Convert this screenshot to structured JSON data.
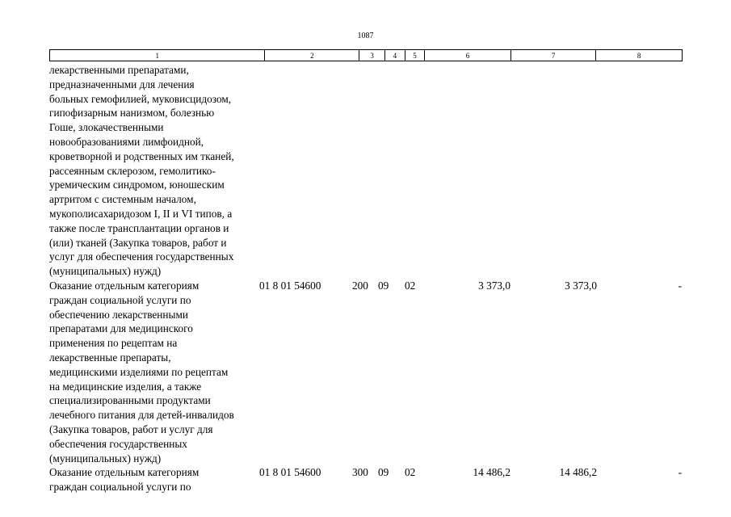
{
  "page_number": "1087",
  "columns": [
    "1",
    "2",
    "3",
    "4",
    "5",
    "6",
    "7",
    "8"
  ],
  "rows": [
    {
      "description": "лекарственными препаратами,\nпредназначенными для лечения\nбольных гемофилией, муковисцидозом,\nгипофизарным нанизмом, болезнью\nГоше, злокачественными\nновообразованиями лимфоидной,\nкроветворной и родственных им тканей,\nрассеянным склерозом, гемолитико-\nуремическим синдромом, юношеским\nартритом с системным началом,\nмукополисахаридозом I, II и VI типов, а\nтакже после трансплантации органов и\n(или) тканей (Закупка товаров, работ и\nуслуг для обеспечения государственных\n(муниципальных) нужд)",
      "code": "",
      "kvr": "",
      "rz": "",
      "pr": "",
      "sum": "",
      "sum2": "",
      "col8": ""
    },
    {
      "description": "Оказание отдельным категориям\nграждан социальной услуги по\nобеспечению лекарственными\nпрепаратами для медицинского\nприменения по рецептам на\nлекарственные препараты,\nмедицинскими изделиями по рецептам\nна медицинские изделия, а также\nспециализированными продуктами\nлечебного питания для детей-инвалидов\n(Закупка товаров, работ и услуг для\nобеспечения государственных\n(муниципальных) нужд)",
      "code": "01 8 01 54600",
      "kvr": "200",
      "rz": "09",
      "pr": "02",
      "sum": "3 373,0",
      "sum2": "3 373,0",
      "col8": "-"
    },
    {
      "description": "Оказание отдельным категориям\nграждан социальной услуги по",
      "code": "01 8 01 54600",
      "kvr": "300",
      "rz": "09",
      "pr": "02",
      "sum": "14 486,2",
      "sum2": "14 486,2",
      "col8": "-"
    }
  ]
}
